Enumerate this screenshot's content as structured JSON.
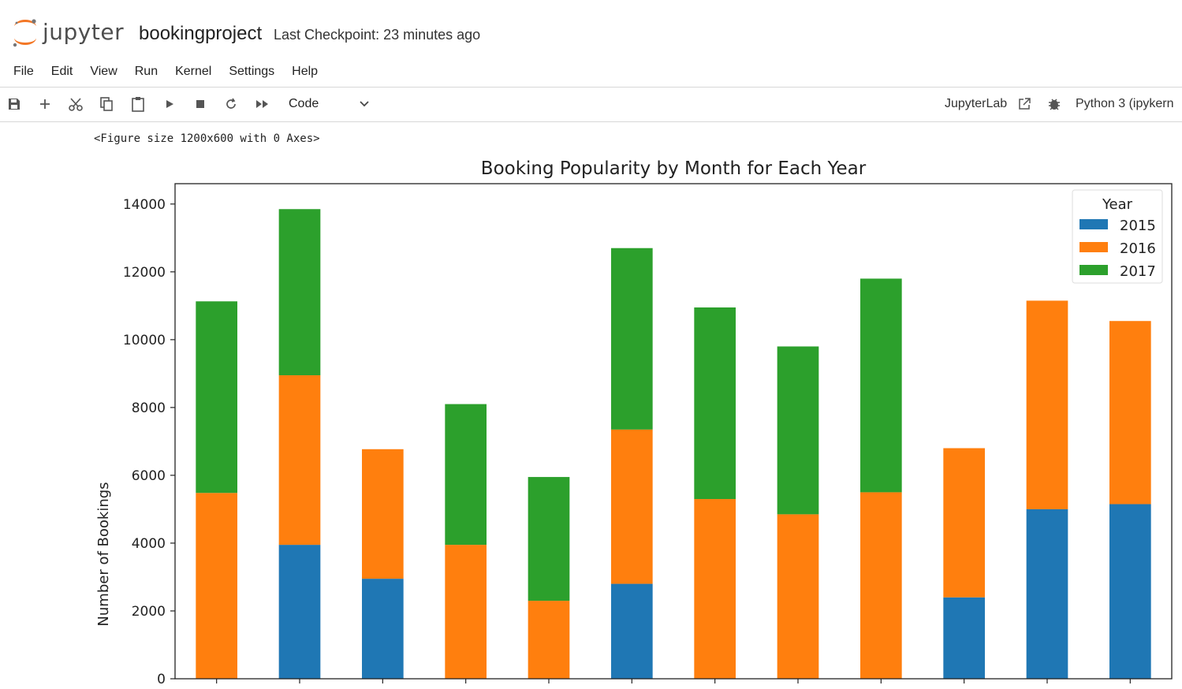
{
  "app": {
    "logo_text": "jupyter",
    "notebook_name": "bookingproject",
    "checkpoint": "Last Checkpoint: 23 minutes ago"
  },
  "menu": [
    "File",
    "Edit",
    "View",
    "Run",
    "Kernel",
    "Settings",
    "Help"
  ],
  "toolbar": {
    "icons": [
      "save-icon",
      "add-icon",
      "cut-icon",
      "copy-icon",
      "paste-icon",
      "run-icon",
      "stop-icon",
      "restart-icon",
      "fast-forward-icon"
    ],
    "cell_type": "Code",
    "jupyterlab_label": "JupyterLab",
    "kernel_name": "Python 3 (ipykern"
  },
  "output": {
    "text": "<Figure size 1200x600 with 0 Axes>"
  },
  "colors": {
    "2015": "#1f77b4",
    "2016": "#ff7f0e",
    "2017": "#2ca02c",
    "jupyter_orange": "#f37726"
  },
  "chart_data": {
    "type": "bar",
    "stacked": true,
    "title": "Booking Popularity by Month for Each Year",
    "xlabel": "",
    "ylabel": "Number of Bookings",
    "ylim": [
      0,
      14600
    ],
    "yticks": [
      0,
      2000,
      4000,
      6000,
      8000,
      10000,
      12000,
      14000
    ],
    "legend_title": "Year",
    "legend_position": "top-right",
    "grid": false,
    "categories_count": 12,
    "series": [
      {
        "name": "2015",
        "values": [
          0,
          3950,
          2950,
          0,
          0,
          2800,
          0,
          0,
          0,
          2400,
          5000,
          5150
        ]
      },
      {
        "name": "2016",
        "values": [
          5480,
          5000,
          3820,
          3950,
          2300,
          4550,
          5300,
          4850,
          5500,
          4400,
          6150,
          5400
        ]
      },
      {
        "name": "2017",
        "values": [
          5650,
          4900,
          0,
          4150,
          3650,
          5350,
          5650,
          4950,
          6300,
          0,
          0,
          0
        ]
      }
    ]
  }
}
